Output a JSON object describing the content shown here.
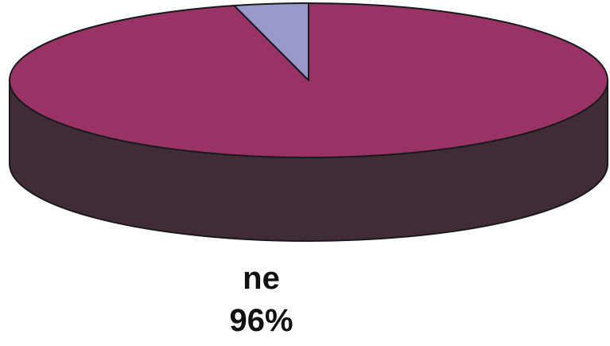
{
  "chart_data": {
    "type": "pie",
    "title": "",
    "slices": [
      {
        "label": "ne",
        "value": 96,
        "display": "96%",
        "color": "#993366",
        "side_color": "#402c36"
      },
      {
        "label": "",
        "value": 4,
        "display": "",
        "color": "#9999cc",
        "side_color": "#5b5b7a"
      }
    ],
    "three_d": true,
    "legend": "none"
  },
  "labels": {
    "main_name": "ne",
    "main_percent": "96%"
  }
}
